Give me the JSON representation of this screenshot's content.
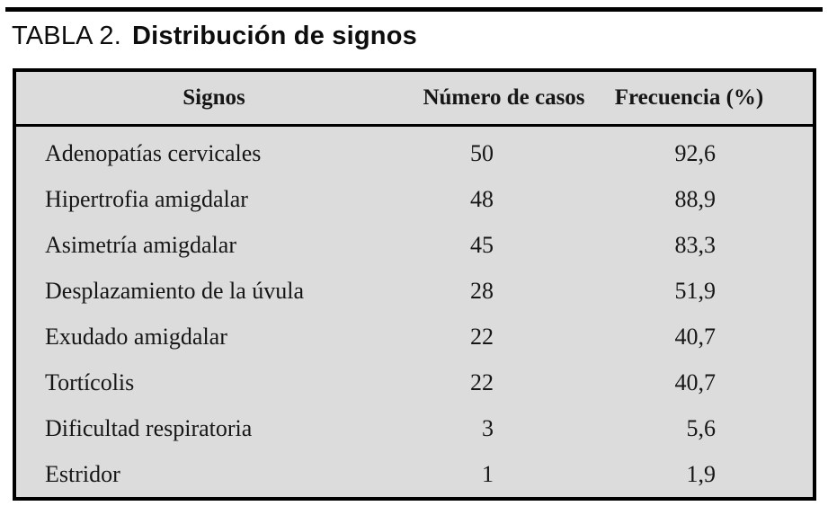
{
  "title": {
    "label": "TABLA 2.",
    "caption": "Distribución de signos"
  },
  "table": {
    "columns": [
      "Signos",
      "Número de casos",
      "Frecuencia (%)"
    ],
    "rows": [
      {
        "signo": "Adenopatías cervicales",
        "casos": "50",
        "frecuencia": "92,6"
      },
      {
        "signo": "Hipertrofia amigdalar",
        "casos": "48",
        "frecuencia": "88,9"
      },
      {
        "signo": "Asimetría amigdalar",
        "casos": "45",
        "frecuencia": "83,3"
      },
      {
        "signo": "Desplazamiento de la úvula",
        "casos": "28",
        "frecuencia": "51,9"
      },
      {
        "signo": "Exudado amigdalar",
        "casos": "22",
        "frecuencia": "40,7"
      },
      {
        "signo": "Tortícolis",
        "casos": "22",
        "frecuencia": "40,7"
      },
      {
        "signo": "Dificultad respiratoria",
        "casos": "3",
        "frecuencia": "5,6"
      },
      {
        "signo": "Estridor",
        "casos": "1",
        "frecuencia": "1,9"
      }
    ]
  },
  "colors": {
    "table_background": "#dcdcdc",
    "border": "#000000",
    "text": "#161616"
  }
}
